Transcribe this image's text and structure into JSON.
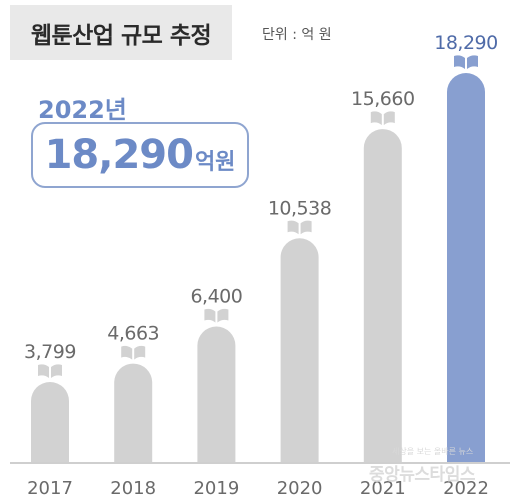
{
  "header": {
    "title": "웹툰산업 규모 추정",
    "unit": "단위 : 억 원"
  },
  "highlight": {
    "year": "2022년",
    "value": "18,290",
    "unit": "억원"
  },
  "colors": {
    "bar": "#d2d2d2",
    "highlight_bar": "#889fd0",
    "value_label": "#6a6a6a",
    "highlight_label": "#4f6ba8",
    "axis": "#cfcfcf"
  },
  "icons": {
    "bar_top": "open-book-icon"
  },
  "watermark": {
    "small": "세상을 보는 올바른 뉴스",
    "large": "중앙뉴스타임스"
  },
  "chart_data": {
    "type": "bar",
    "categories": [
      "2017",
      "2018",
      "2019",
      "2020",
      "2021",
      "2022"
    ],
    "values": [
      3799,
      4663,
      6400,
      10538,
      15660,
      18290
    ],
    "labels": [
      "3,799",
      "4,663",
      "6,400",
      "10,538",
      "15,660",
      "18,290"
    ],
    "highlight_index": 5,
    "title": "웹툰산업 규모 추정",
    "xlabel": "",
    "ylabel": "",
    "grid": false,
    "legend": "none"
  }
}
